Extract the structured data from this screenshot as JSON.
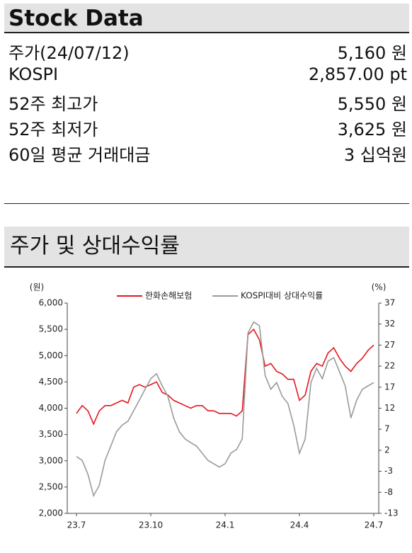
{
  "header": {
    "title": "Stock Data"
  },
  "table": {
    "rows": [
      [
        "주가(24/07/12)",
        "5,160 원"
      ],
      [
        "KOSPI",
        "2,857.00 pt"
      ],
      [
        "52주 최고가",
        "5,550 원"
      ],
      [
        "52주 최저가",
        "3,625 원"
      ],
      [
        "60일 평균 거래대금",
        "3 십억원"
      ]
    ]
  },
  "section": {
    "title": "주가 및 상대수익률"
  },
  "chart_data": {
    "type": "line",
    "ylabel": "(원)",
    "y2label": "(%)",
    "categories": [
      "23.7",
      null,
      null,
      null,
      null,
      null,
      null,
      null,
      null,
      null,
      null,
      null,
      null,
      "23.10",
      null,
      null,
      null,
      null,
      null,
      null,
      null,
      null,
      null,
      null,
      null,
      null,
      "24.1",
      null,
      null,
      null,
      null,
      null,
      null,
      null,
      null,
      null,
      null,
      null,
      null,
      "24.4",
      null,
      null,
      null,
      null,
      null,
      null,
      null,
      null,
      null,
      null,
      null,
      null,
      "24.7"
    ],
    "ylim": [
      2000,
      6000
    ],
    "yticks": [
      {
        "value": 2000,
        "label": "2,000"
      },
      {
        "value": 2500,
        "label": "2,500"
      },
      {
        "value": 3000,
        "label": "3,000"
      },
      {
        "value": 3500,
        "label": "3,500"
      },
      {
        "value": 4000,
        "label": "4,000"
      },
      {
        "value": 4500,
        "label": "4,500"
      },
      {
        "value": 5000,
        "label": "5,000"
      },
      {
        "value": 5500,
        "label": "5,500"
      },
      {
        "value": 6000,
        "label": "6,000"
      }
    ],
    "y2lim": [
      -13,
      37
    ],
    "y2ticks": [
      -13,
      -8,
      -3,
      2,
      7,
      12,
      17,
      22,
      27,
      32,
      37
    ],
    "series": [
      {
        "name": "한화손해보험",
        "color": "#e3161d",
        "values": [
          3900,
          4050,
          3950,
          3700,
          3950,
          4050,
          4050,
          4100,
          4150,
          4100,
          4400,
          4450,
          4400,
          4450,
          4500,
          4300,
          4250,
          4150,
          4100,
          4050,
          4000,
          4050,
          4050,
          3950,
          3950,
          3900,
          3900,
          3900,
          3850,
          3950,
          5400,
          5500,
          5300,
          4800,
          4850,
          4700,
          4650,
          4550,
          4550,
          4150,
          4250,
          4700,
          4850,
          4800,
          5050,
          5150,
          4950,
          4800,
          4700,
          4850,
          4950,
          5100,
          5200
        ]
      },
      {
        "name": "KOSPI대비 상대수익률",
        "color": "#9a9a9a",
        "axis": "y2",
        "values": [
          0.5,
          -0.4,
          -3.7,
          -8.8,
          -6.3,
          -0.4,
          3,
          6.4,
          8,
          8.9,
          11.4,
          13.9,
          16.5,
          19,
          20.2,
          17.3,
          14.8,
          9.7,
          6.4,
          4.7,
          3.8,
          3,
          1.3,
          -0.4,
          -1.2,
          -2,
          -1.2,
          1.3,
          2.2,
          4.7,
          29.9,
          32.5,
          31.6,
          19.8,
          16.5,
          18.1,
          14.8,
          13.1,
          8,
          1.3,
          4.7,
          18.1,
          21.5,
          19,
          23.2,
          24,
          20.7,
          17.3,
          9.7,
          13.9,
          16.5,
          17.3,
          18.1
        ]
      }
    ]
  }
}
